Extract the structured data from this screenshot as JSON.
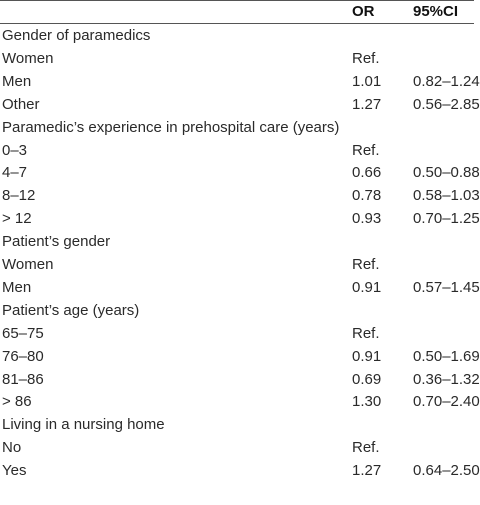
{
  "header": {
    "or": "OR",
    "ci": "95%CI"
  },
  "rows": [
    {
      "label": "Gender of paramedics"
    },
    {
      "label": "Women",
      "or": "Ref."
    },
    {
      "label": "Men",
      "or": "1.01",
      "ci": "0.82–1.24"
    },
    {
      "label": "Other",
      "or": "1.27",
      "ci": "0.56–2.85"
    },
    {
      "label": "Paramedic’s experience in prehospital care (years)"
    },
    {
      "label": "0–3",
      "or": "Ref."
    },
    {
      "label": "4–7",
      "or": "0.66",
      "ci": "0.50–0.88"
    },
    {
      "label": "8–12",
      "or": "0.78",
      "ci": "0.58–1.03"
    },
    {
      "label": "> 12",
      "or": "0.93",
      "ci": "0.70–1.25"
    },
    {
      "label": "Patient’s gender"
    },
    {
      "label": "Women",
      "or": "Ref."
    },
    {
      "label": "Men",
      "or": "0.91",
      "ci": "0.57–1.45"
    },
    {
      "label": "Patient’s age (years)"
    },
    {
      "label": "65–75",
      "or": "Ref."
    },
    {
      "label": "76–80",
      "or": "0.91",
      "ci": "0.50–1.69"
    },
    {
      "label": "81–86",
      "or": "0.69",
      "ci": "0.36–1.32"
    },
    {
      "label": "> 86",
      "or": "1.30",
      "ci": "0.70–2.40"
    },
    {
      "label": "Living in a nursing home"
    },
    {
      "label": "No",
      "or": "Ref."
    },
    {
      "label": "Yes",
      "or": "1.27",
      "ci": "0.64–2.50"
    }
  ]
}
